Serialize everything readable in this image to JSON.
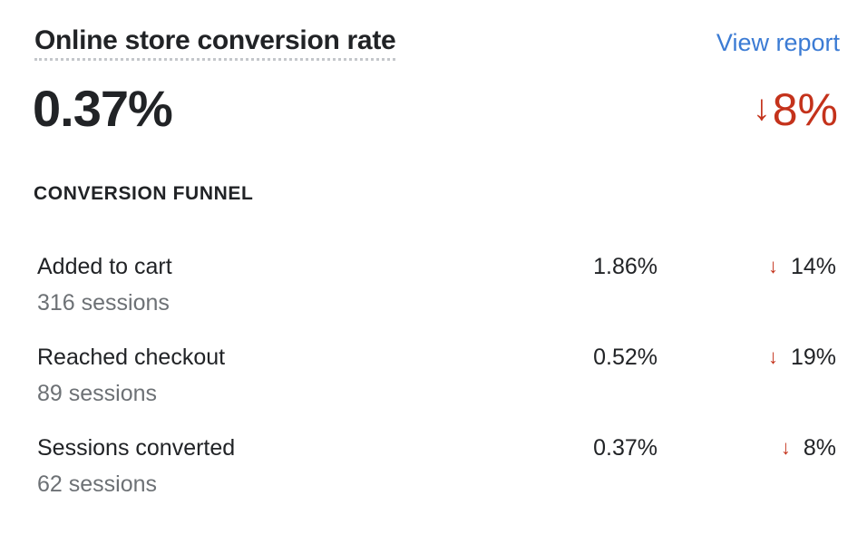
{
  "card": {
    "title": "Online store conversion rate",
    "view_report_label": "View report",
    "value": "0.37%",
    "change": {
      "arrow": "↓",
      "value": "8%",
      "color": "#c4321b"
    },
    "section_label": "CONVERSION FUNNEL"
  },
  "funnel": {
    "rows": [
      {
        "name": "Added to cart",
        "sessions": "316 sessions",
        "rate": "1.86%",
        "arrow": "↓",
        "change": "14%"
      },
      {
        "name": "Reached checkout",
        "sessions": "89 sessions",
        "rate": "0.52%",
        "arrow": "↓",
        "change": "19%"
      },
      {
        "name": "Sessions converted",
        "sessions": "62 sessions",
        "rate": "0.37%",
        "arrow": "↓",
        "change": "8%"
      }
    ]
  },
  "colors": {
    "link": "#3b7bd4",
    "negative": "#c4321b",
    "text": "#212326",
    "subdued": "#6d7175"
  }
}
